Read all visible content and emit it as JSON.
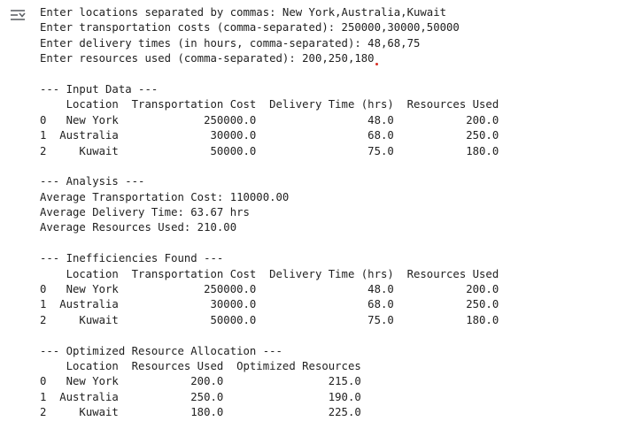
{
  "cell_output": {
    "icon": "output-toggle-icon",
    "lines": [
      "Enter locations separated by commas: New York,Australia,Kuwait",
      "Enter transportation costs (comma-separated): 250000,30000,50000",
      "Enter delivery times (in hours, comma-separated): 48,68,75",
      "Enter resources used (comma-separated): 200,250,180",
      "",
      "--- Input Data ---",
      "    Location  Transportation Cost  Delivery Time (hrs)  Resources Used",
      "0   New York             250000.0                 48.0           200.0",
      "1  Australia              30000.0                 68.0           250.0",
      "2     Kuwait              50000.0                 75.0           180.0",
      "",
      "--- Analysis ---",
      "Average Transportation Cost: 110000.00",
      "Average Delivery Time: 63.67 hrs",
      "Average Resources Used: 210.00",
      "",
      "--- Inefficiencies Found ---",
      "    Location  Transportation Cost  Delivery Time (hrs)  Resources Used",
      "0   New York             250000.0                 48.0           200.0",
      "1  Australia              30000.0                 68.0           250.0",
      "2     Kuwait              50000.0                 75.0           180.0",
      "",
      "--- Optimized Resource Allocation ---",
      "    Location  Resources Used  Optimized Resources",
      "0   New York           200.0                215.0",
      "1  Australia           250.0                190.0",
      "2     Kuwait           180.0                225.0"
    ]
  },
  "colors": {
    "text": "#212121",
    "icon": "#5f6368",
    "cursor": "#d93025"
  }
}
